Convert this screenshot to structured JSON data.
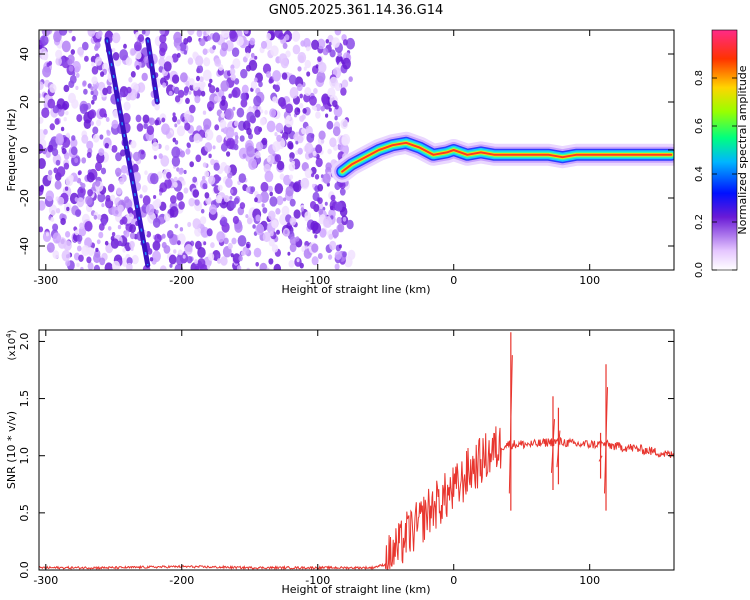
{
  "title": "GN05.2025.361.14.36.G14",
  "chart_data": [
    {
      "type": "heatmap",
      "xlabel": "Height of straight line (km)",
      "ylabel": "Frequency (Hz)",
      "xlim": [
        -305,
        162
      ],
      "ylim": [
        -50,
        50
      ],
      "xticks": [
        -300,
        -200,
        -100,
        0,
        100
      ],
      "yticks": [
        -40,
        -20,
        0,
        20,
        40
      ],
      "colorbar": {
        "label": "Normalized spectral amplitude",
        "range": [
          0,
          1
        ],
        "ticks": [
          0.0,
          0.2,
          0.4,
          0.6,
          0.8
        ]
      },
      "noise_region_x": [
        -305,
        -75
      ],
      "diagonal_tracks": [
        {
          "x": [
            -255,
            -225
          ],
          "y": [
            46,
            -48
          ]
        },
        {
          "x": [
            -225,
            -218
          ],
          "y": [
            46,
            20
          ]
        }
      ],
      "main_track": {
        "x": [
          -82,
          -75,
          -65,
          -55,
          -45,
          -35,
          -25,
          -15,
          -5,
          0,
          10,
          20,
          30,
          40,
          50,
          60,
          70,
          80,
          90,
          100,
          110,
          120,
          130,
          140,
          150,
          160
        ],
        "y": [
          -9,
          -6,
          -3,
          0,
          2,
          3,
          1,
          -2,
          -1,
          0,
          -2,
          -1,
          -2,
          -2,
          -2,
          -2,
          -2,
          -3,
          -2,
          -2,
          -2,
          -2,
          -2,
          -2,
          -2,
          -2
        ]
      }
    },
    {
      "type": "line",
      "xlabel": "Height of straight line (km)",
      "ylabel": "SNR (10 * v/v)",
      "y_multiplier": "(x10",
      "y_multiplier_exp": "4",
      "y_multiplier_close": ")",
      "xlim": [
        -305,
        162
      ],
      "ylim": [
        0,
        2.1
      ],
      "xticks": [
        -300,
        -200,
        -100,
        0,
        100
      ],
      "yticks": [
        0.0,
        0.5,
        1.0,
        1.5,
        2.0
      ],
      "color": "#e8352e",
      "series": {
        "x": [
          -305,
          -250,
          -200,
          -150,
          -100,
          -60,
          -50,
          -45,
          -40,
          -35,
          -30,
          -25,
          -20,
          -15,
          -10,
          -5,
          0,
          5,
          10,
          15,
          20,
          25,
          30,
          35,
          40,
          45,
          50,
          60,
          70,
          80,
          90,
          100,
          110,
          120,
          130,
          140,
          150,
          162
        ],
        "y": [
          0.02,
          0.02,
          0.03,
          0.02,
          0.02,
          0.02,
          0.05,
          0.15,
          0.2,
          0.3,
          0.35,
          0.4,
          0.5,
          0.55,
          0.6,
          0.65,
          0.7,
          0.75,
          0.85,
          0.9,
          0.95,
          1.0,
          1.05,
          1.08,
          1.1,
          1.1,
          1.1,
          1.1,
          1.12,
          1.12,
          1.1,
          1.1,
          1.1,
          1.08,
          1.07,
          1.05,
          1.03,
          1.0
        ]
      },
      "spikes": [
        {
          "x": 42,
          "y": 2.08,
          "low": 0.52
        },
        {
          "x": 73,
          "y": 1.52,
          "low": 0.7
        },
        {
          "x": 77,
          "y": 1.42,
          "low": 0.75
        },
        {
          "x": 112,
          "y": 1.8,
          "low": 0.52
        },
        {
          "x": 108,
          "y": 1.2,
          "low": 0.8
        }
      ]
    }
  ]
}
